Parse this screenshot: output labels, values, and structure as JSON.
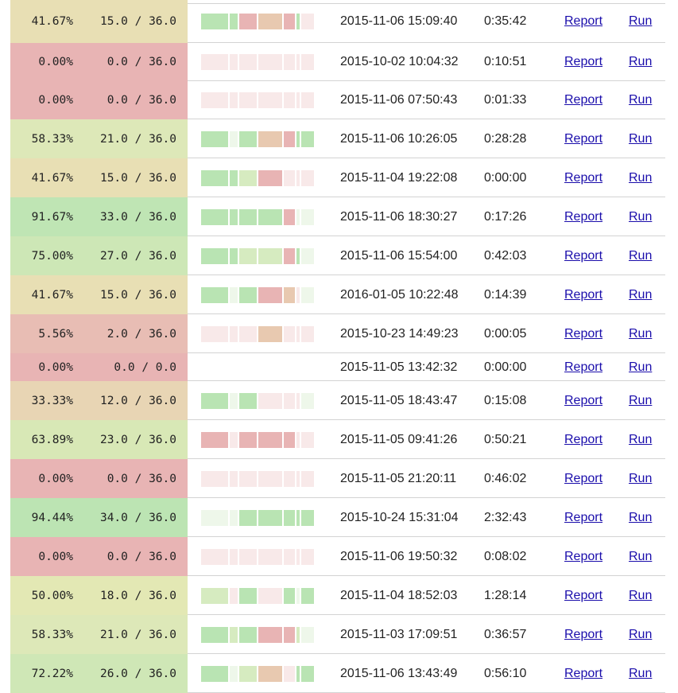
{
  "colors": {
    "seg_green": "#b9e4b3",
    "seg_lightgreen": "#d6ebc0",
    "seg_palegreen": "#eef7ea",
    "seg_red": "#e8b4b4",
    "seg_peach": "#e8c9b0",
    "seg_empty": "#f8e9e9",
    "link": "#1a0dab"
  },
  "rows": [
    {
      "pct": "41.67%",
      "points": "15.0 / 36.0",
      "score_color": "#e8dfb4",
      "date": "2015-11-06 15:09:40",
      "duration": "0:35:42",
      "report": "Report",
      "run": "Run",
      "segments": [
        "green",
        "green",
        "red",
        "peach",
        "red",
        "green",
        "empty"
      ]
    },
    {
      "pct": "0.00%",
      "points": "0.0 / 36.0",
      "score_color": "#e8b4b4",
      "date": "2015-10-02 10:04:32",
      "duration": "0:10:51",
      "report": "Report",
      "run": "Run",
      "segments": [
        "empty",
        "empty",
        "empty",
        "empty",
        "empty",
        "empty",
        "empty"
      ]
    },
    {
      "pct": "0.00%",
      "points": "0.0 / 36.0",
      "score_color": "#e8b4b4",
      "date": "2015-11-06 07:50:43",
      "duration": "0:01:33",
      "report": "Report",
      "run": "Run",
      "segments": [
        "empty",
        "empty",
        "empty",
        "empty",
        "empty",
        "empty",
        "empty"
      ]
    },
    {
      "pct": "58.33%",
      "points": "21.0 / 36.0",
      "score_color": "#dde8b8",
      "date": "2015-11-06 10:26:05",
      "duration": "0:28:28",
      "report": "Report",
      "run": "Run",
      "segments": [
        "green",
        "palegreen",
        "green",
        "peach",
        "red",
        "green",
        "green"
      ]
    },
    {
      "pct": "41.67%",
      "points": "15.0 / 36.0",
      "score_color": "#e8dfb4",
      "date": "2015-11-04 19:22:08",
      "duration": "0:00:00",
      "report": "Report",
      "run": "Run",
      "segments": [
        "green",
        "green",
        "lightgreen",
        "red",
        "empty",
        "empty",
        "empty"
      ]
    },
    {
      "pct": "91.67%",
      "points": "33.0 / 36.0",
      "score_color": "#bfe5b4",
      "date": "2015-11-06 18:30:27",
      "duration": "0:17:26",
      "report": "Report",
      "run": "Run",
      "segments": [
        "green",
        "green",
        "green",
        "green",
        "red",
        "palegreen",
        "palegreen"
      ]
    },
    {
      "pct": "75.00%",
      "points": "27.0 / 36.0",
      "score_color": "#cde7b6",
      "date": "2015-11-06 15:54:00",
      "duration": "0:42:03",
      "report": "Report",
      "run": "Run",
      "segments": [
        "green",
        "green",
        "lightgreen",
        "lightgreen",
        "red",
        "green",
        "palegreen"
      ]
    },
    {
      "pct": "41.67%",
      "points": "15.0 / 36.0",
      "score_color": "#e8dfb4",
      "date": "2016-01-05 10:22:48",
      "duration": "0:14:39",
      "report": "Report",
      "run": "Run",
      "segments": [
        "green",
        "palegreen",
        "green",
        "red",
        "peach",
        "empty",
        "palegreen"
      ]
    },
    {
      "pct": "5.56%",
      "points": "2.0 / 36.0",
      "score_color": "#e8bdb4",
      "date": "2015-10-23 14:49:23",
      "duration": "0:00:05",
      "report": "Report",
      "run": "Run",
      "segments": [
        "empty",
        "empty",
        "empty",
        "peach",
        "empty",
        "empty",
        "empty"
      ]
    },
    {
      "pct": "0.00%",
      "points": "0.0 / 0.0",
      "score_color": "#e8b4b4",
      "date": "2015-11-05 13:42:32",
      "duration": "0:00:00",
      "report": "Report",
      "run": "Run",
      "segments": []
    },
    {
      "pct": "33.33%",
      "points": "12.0 / 36.0",
      "score_color": "#e8d5b4",
      "date": "2015-11-05 18:43:47",
      "duration": "0:15:08",
      "report": "Report",
      "run": "Run",
      "segments": [
        "green",
        "palegreen",
        "green",
        "empty",
        "empty",
        "empty",
        "palegreen"
      ]
    },
    {
      "pct": "63.89%",
      "points": "23.0 / 36.0",
      "score_color": "#d8e8b6",
      "date": "2015-11-05 09:41:26",
      "duration": "0:50:21",
      "report": "Report",
      "run": "Run",
      "segments": [
        "red",
        "empty",
        "red",
        "red",
        "red",
        "empty",
        "empty"
      ]
    },
    {
      "pct": "0.00%",
      "points": "0.0 / 36.0",
      "score_color": "#e8b4b4",
      "date": "2015-11-05 21:20:11",
      "duration": "0:46:02",
      "report": "Report",
      "run": "Run",
      "segments": [
        "empty",
        "empty",
        "empty",
        "empty",
        "empty",
        "empty",
        "empty"
      ]
    },
    {
      "pct": "94.44%",
      "points": "34.0 / 36.0",
      "score_color": "#bce4b3",
      "date": "2015-10-24 15:31:04",
      "duration": "2:32:43",
      "report": "Report",
      "run": "Run",
      "segments": [
        "palegreen",
        "palegreen",
        "green",
        "green",
        "green",
        "green",
        "green"
      ]
    },
    {
      "pct": "0.00%",
      "points": "0.0 / 36.0",
      "score_color": "#e8b4b4",
      "date": "2015-11-06 19:50:32",
      "duration": "0:08:02",
      "report": "Report",
      "run": "Run",
      "segments": [
        "empty",
        "empty",
        "empty",
        "empty",
        "empty",
        "empty",
        "empty"
      ]
    },
    {
      "pct": "50.00%",
      "points": "18.0 / 36.0",
      "score_color": "#e3e8b4",
      "date": "2015-11-04 18:52:03",
      "duration": "1:28:14",
      "report": "Report",
      "run": "Run",
      "segments": [
        "lightgreen",
        "empty",
        "green",
        "empty",
        "green",
        "palegreen",
        "green"
      ]
    },
    {
      "pct": "58.33%",
      "points": "21.0 / 36.0",
      "score_color": "#dde8b8",
      "date": "2015-11-03 17:09:51",
      "duration": "0:36:57",
      "report": "Report",
      "run": "Run",
      "segments": [
        "green",
        "lightgreen",
        "green",
        "red",
        "red",
        "lightgreen",
        "palegreen"
      ]
    },
    {
      "pct": "72.22%",
      "points": "26.0 / 36.0",
      "score_color": "#cfe7b6",
      "date": "2015-11-06 13:43:49",
      "duration": "0:56:10",
      "report": "Report",
      "run": "Run",
      "segments": [
        "green",
        "palegreen",
        "lightgreen",
        "peach",
        "empty",
        "green",
        "green"
      ]
    }
  ]
}
